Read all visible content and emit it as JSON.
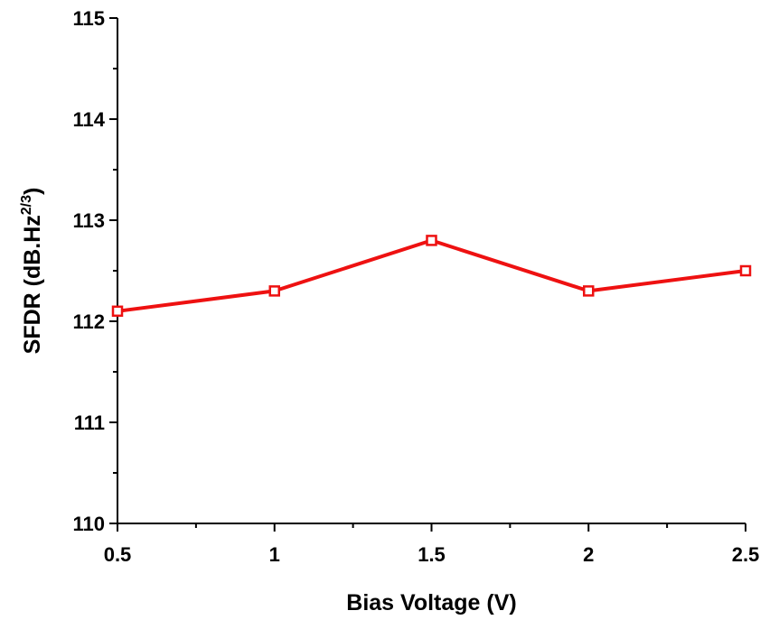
{
  "chart_data": {
    "type": "line",
    "xlabel": "Bias Voltage (V)",
    "ylabel": {
      "base": "SFDR (dB.Hz",
      "superscript": "2/3",
      "suffix": ")"
    },
    "xlim": [
      0.5,
      2.5
    ],
    "ylim": [
      110,
      115
    ],
    "x_ticks": [
      "0.5",
      "1",
      "1.5",
      "2",
      "2.5"
    ],
    "x_tick_values": [
      0.5,
      1,
      1.5,
      2,
      2.5
    ],
    "x_minor_tick_values": [
      0.75,
      1.25,
      1.75,
      2.25
    ],
    "y_ticks": [
      "110",
      "111",
      "112",
      "113",
      "114",
      "115"
    ],
    "y_tick_values": [
      110,
      111,
      112,
      113,
      114,
      115
    ],
    "y_minor_tick_values": [
      110.5,
      111.5,
      112.5,
      113.5,
      114.5
    ],
    "grid": false,
    "series": [
      {
        "color": "#ee1111",
        "marker": "square-open",
        "x": [
          0.5,
          1,
          1.5,
          2,
          2.5
        ],
        "y": [
          112.1,
          112.3,
          112.8,
          112.3,
          112.5
        ]
      }
    ]
  }
}
